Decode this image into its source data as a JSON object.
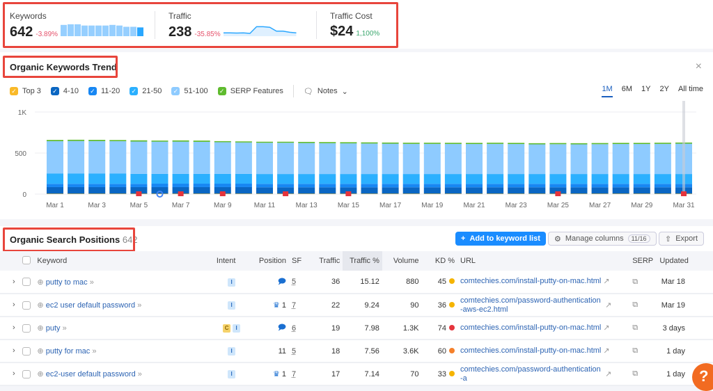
{
  "summary": {
    "keywords": {
      "label": "Keywords",
      "value": "642",
      "change": "-3.89%",
      "spark": [
        0.9,
        0.95,
        0.95,
        0.85,
        0.85,
        0.85,
        0.85,
        0.9,
        0.85,
        0.75,
        0.75,
        0.7
      ]
    },
    "traffic": {
      "label": "Traffic",
      "value": "238",
      "change": "-35.85%",
      "spark": [
        0.3,
        0.3,
        0.28,
        0.3,
        0.25,
        0.85,
        0.85,
        0.8,
        0.45,
        0.45,
        0.35,
        0.3
      ]
    },
    "traffic_cost": {
      "label": "Traffic Cost",
      "value": "$24",
      "change": "1,100%"
    }
  },
  "trend": {
    "title": "Organic Keywords Trend",
    "close_icon": "close-icon",
    "legend": [
      {
        "label": "Top 3",
        "color": "#f9b928"
      },
      {
        "label": "4-10",
        "color": "#0a66c2"
      },
      {
        "label": "11-20",
        "color": "#1787f3"
      },
      {
        "label": "21-50",
        "color": "#2bb0ff"
      },
      {
        "label": "51-100",
        "color": "#8ecbff"
      },
      {
        "label": "SERP Features",
        "color": "#5fbb2e"
      }
    ],
    "notes_label": "Notes",
    "ranges": [
      "1M",
      "6M",
      "1Y",
      "2Y",
      "All time"
    ],
    "active_range": "1M"
  },
  "chart_data": {
    "type": "bar",
    "stacked": true,
    "ylim": [
      0,
      1000
    ],
    "yticks": [
      "0",
      "500",
      "1K"
    ],
    "grid": true,
    "categories": [
      "Mar 1",
      "Mar 2",
      "Mar 3",
      "Mar 4",
      "Mar 5",
      "Mar 6",
      "Mar 7",
      "Mar 8",
      "Mar 9",
      "Mar 10",
      "Mar 11",
      "Mar 12",
      "Mar 13",
      "Mar 14",
      "Mar 15",
      "Mar 16",
      "Mar 17",
      "Mar 18",
      "Mar 19",
      "Mar 20",
      "Mar 21",
      "Mar 22",
      "Mar 23",
      "Mar 24",
      "Mar 25",
      "Mar 26",
      "Mar 27",
      "Mar 28",
      "Mar 29",
      "Mar 30",
      "Mar 31"
    ],
    "xtick_labels": [
      "Mar 1",
      "Mar 3",
      "Mar 5",
      "Mar 7",
      "Mar 9",
      "Mar 11",
      "Mar 13",
      "Mar 15",
      "Mar 17",
      "Mar 19",
      "Mar 21",
      "Mar 23",
      "Mar 25",
      "Mar 27",
      "Mar 29",
      "Mar 31"
    ],
    "series": [
      {
        "name": "Top 3",
        "values": [
          5,
          5,
          5,
          5,
          5,
          5,
          5,
          5,
          5,
          5,
          5,
          5,
          5,
          5,
          5,
          5,
          5,
          5,
          5,
          5,
          5,
          5,
          5,
          5,
          5,
          5,
          5,
          5,
          5,
          5,
          5
        ]
      },
      {
        "name": "4-10",
        "values": [
          80,
          80,
          80,
          80,
          80,
          80,
          80,
          80,
          80,
          80,
          78,
          78,
          78,
          78,
          78,
          78,
          78,
          78,
          78,
          78,
          78,
          78,
          78,
          78,
          78,
          78,
          78,
          78,
          78,
          78,
          78
        ]
      },
      {
        "name": "11-20",
        "values": [
          40,
          40,
          40,
          40,
          40,
          42,
          42,
          42,
          42,
          42,
          42,
          42,
          42,
          42,
          42,
          42,
          42,
          42,
          42,
          42,
          42,
          42,
          42,
          42,
          42,
          42,
          42,
          42,
          42,
          42,
          42
        ]
      },
      {
        "name": "21-50",
        "values": [
          125,
          125,
          125,
          125,
          122,
          120,
          120,
          120,
          120,
          120,
          120,
          120,
          120,
          120,
          120,
          120,
          120,
          120,
          120,
          120,
          120,
          120,
          120,
          120,
          120,
          120,
          120,
          120,
          120,
          120,
          120
        ]
      },
      {
        "name": "51-100",
        "values": [
          395,
          397,
          396,
          395,
          393,
          392,
          392,
          390,
          385,
          382,
          380,
          380,
          377,
          375,
          373,
          371,
          369,
          367,
          367,
          366,
          365,
          367,
          365,
          361,
          363,
          361,
          363,
          365,
          365,
          367,
          369
        ]
      },
      {
        "name": "SERP Features",
        "values": [
          15,
          15,
          15,
          14,
          15,
          13,
          15,
          15,
          13,
          13,
          13,
          13,
          14,
          14,
          14,
          14,
          14,
          14,
          14,
          14,
          14,
          14,
          14,
          14,
          14,
          14,
          14,
          14,
          14,
          14,
          14
        ]
      }
    ],
    "markers": [
      {
        "day": "Mar 5",
        "type": "flag"
      },
      {
        "day": "Mar 6",
        "type": "google"
      },
      {
        "day": "Mar 7",
        "type": "flag"
      },
      {
        "day": "Mar 9",
        "type": "flag"
      },
      {
        "day": "Mar 12",
        "type": "flag"
      },
      {
        "day": "Mar 15",
        "type": "flag"
      },
      {
        "day": "Mar 25",
        "type": "flag"
      },
      {
        "day": "Mar 31",
        "type": "flag"
      }
    ]
  },
  "positions": {
    "title": "Organic Search Positions",
    "count": "642",
    "add_label": "Add to keyword list",
    "manage_label": "Manage columns",
    "manage_count": "11/16",
    "export_label": "Export",
    "columns": [
      "Keyword",
      "Intent",
      "Position",
      "SF",
      "Traffic",
      "Traffic %",
      "Volume",
      "KD %",
      "URL",
      "SERP",
      "Updated"
    ],
    "rows": [
      {
        "keyword": "putty to mac",
        "intent": [
          "I"
        ],
        "position": "",
        "pos_icon": "serp-feature",
        "sf": "5",
        "traffic": "36",
        "traffic_pct": "15.12",
        "volume": "880",
        "kd": "45",
        "kd_color": "#f5b400",
        "url": "comtechies.com/install-putty-on-mac.html",
        "updated": "Mar 18"
      },
      {
        "keyword": "ec2 user default password",
        "intent": [
          "I"
        ],
        "position": "1",
        "pos_icon": "crown",
        "sf": "7",
        "traffic": "22",
        "traffic_pct": "9.24",
        "volume": "90",
        "kd": "36",
        "kd_color": "#f5b400",
        "url": "comtechies.com/password-authentication-aws-ec2.html",
        "updated": "Mar 19"
      },
      {
        "keyword": "puty",
        "intent": [
          "C",
          "I"
        ],
        "position": "",
        "pos_icon": "serp-feature",
        "sf": "6",
        "traffic": "19",
        "traffic_pct": "7.98",
        "volume": "1.3K",
        "kd": "74",
        "kd_color": "#e5343c",
        "url": "comtechies.com/install-putty-on-mac.html",
        "updated": "3 days"
      },
      {
        "keyword": "putty for mac",
        "intent": [
          "I"
        ],
        "position": "11",
        "pos_icon": "",
        "sf": "5",
        "traffic": "18",
        "traffic_pct": "7.56",
        "volume": "3.6K",
        "kd": "60",
        "kd_color": "#f5802a",
        "url": "comtechies.com/install-putty-on-mac.html",
        "updated": "1 day"
      },
      {
        "keyword": "ec2-user default password",
        "intent": [
          "I"
        ],
        "position": "1",
        "pos_icon": "crown",
        "sf": "7",
        "traffic": "17",
        "traffic_pct": "7.14",
        "volume": "70",
        "kd": "33",
        "kd_color": "#f5b400",
        "url": "comtechies.com/password-authentication-a",
        "updated": "1 day"
      }
    ]
  },
  "help_label": "?"
}
